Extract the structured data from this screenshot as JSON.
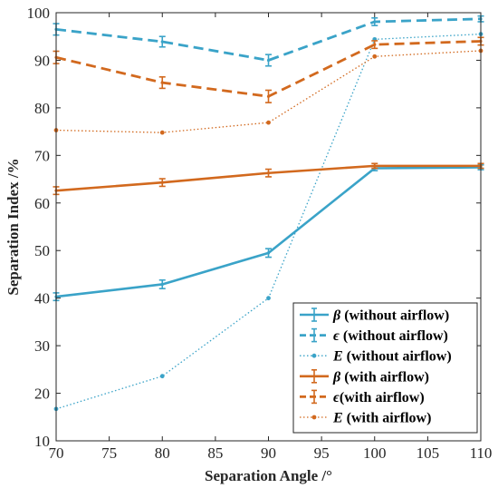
{
  "chart_data": {
    "type": "line",
    "title": "",
    "xlabel": "Separation Angle /°",
    "ylabel": "Separation Index /%",
    "xlim": [
      70,
      110
    ],
    "ylim": [
      10,
      100
    ],
    "xticks": [
      "70",
      "75",
      "80",
      "85",
      "90",
      "95",
      "100",
      "105",
      "110"
    ],
    "yticks": [
      "10",
      "20",
      "30",
      "40",
      "50",
      "60",
      "70",
      "80",
      "90",
      "100"
    ],
    "grid": false,
    "legend_position": "bottom-right",
    "x": [
      70,
      80,
      90,
      100,
      110
    ],
    "colors": {
      "without_airflow": "#3aa3c8",
      "with_airflow": "#d2691e"
    },
    "series": [
      {
        "symbol": "β",
        "label": " (without airflow)",
        "group": "without_airflow",
        "style": "solid",
        "marker": "none",
        "values": [
          40.3,
          42.9,
          49.5,
          67.3,
          67.5
        ],
        "errors": [
          0.8,
          0.9,
          0.9,
          0.5,
          0.5
        ]
      },
      {
        "symbol": "ϵ",
        "label": " (without airflow)",
        "group": "without_airflow",
        "style": "dashed",
        "marker": "none",
        "values": [
          96.5,
          93.9,
          90.0,
          98.1,
          98.7
        ],
        "errors": [
          1.2,
          1.1,
          1.2,
          0.8,
          0.6
        ]
      },
      {
        "symbol": "E",
        "label": " (without airflow)",
        "group": "without_airflow",
        "style": "dotted",
        "marker": "circle",
        "values": [
          16.7,
          23.6,
          40.0,
          94.4,
          95.5
        ],
        "errors": []
      },
      {
        "symbol": "β",
        "label": " (with airflow)",
        "group": "with_airflow",
        "style": "solid",
        "marker": "none",
        "values": [
          62.6,
          64.3,
          66.3,
          67.8,
          67.8
        ],
        "errors": [
          0.8,
          0.8,
          0.8,
          0.5,
          0.5
        ]
      },
      {
        "symbol": "ϵ",
        "label": "(with airflow)",
        "group": "with_airflow",
        "style": "dashed",
        "marker": "none",
        "values": [
          90.6,
          85.3,
          82.4,
          93.3,
          94.0
        ],
        "errors": [
          1.3,
          1.2,
          1.3,
          0.8,
          0.8
        ]
      },
      {
        "symbol": "E",
        "label": " (with airflow)",
        "group": "with_airflow",
        "style": "dotted",
        "marker": "circle",
        "values": [
          75.3,
          74.8,
          76.9,
          90.8,
          92.0
        ],
        "errors": []
      }
    ]
  }
}
